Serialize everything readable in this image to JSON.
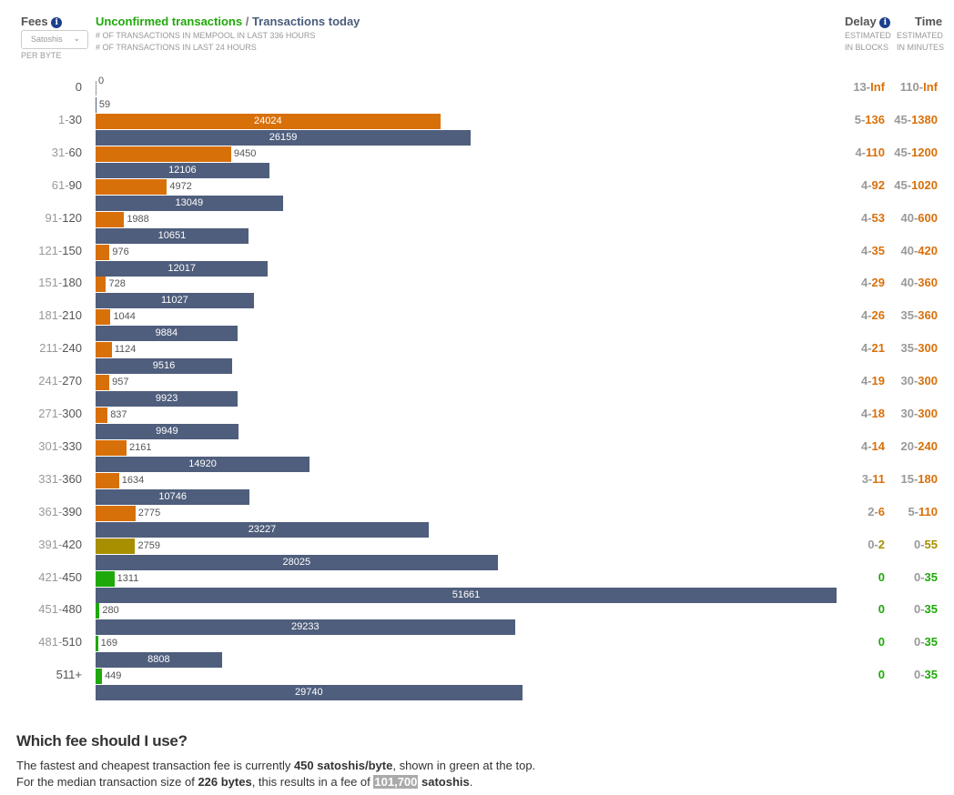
{
  "header": {
    "fees_label": "Fees",
    "unit_select_value": "Satoshis",
    "per_byte": "PER BYTE",
    "title_unconfirmed": "Unconfirmed transactions",
    "title_separator": " / ",
    "title_today": "Transactions today",
    "note_mempool": "# OF TRANSACTIONS IN MEMPOOL IN LAST 336 HOURS",
    "note_24h": "# OF TRANSACTIONS IN LAST 24 HOURS",
    "delay_label": "Delay",
    "delay_sub1": "ESTIMATED",
    "delay_sub2": "IN BLOCKS",
    "time_label": "Time",
    "time_sub1": "ESTIMATED",
    "time_sub2": "IN MINUTES",
    "info_glyph": "i"
  },
  "colors": {
    "orange": "#d8700a",
    "olive": "#a88f00",
    "green": "#1fa80a",
    "navy": "#4f5e7c"
  },
  "chart_data": {
    "type": "bar",
    "orientation": "horizontal",
    "categories": [
      "0",
      "1-30",
      "31-60",
      "61-90",
      "91-120",
      "121-150",
      "151-180",
      "181-210",
      "211-240",
      "241-270",
      "271-300",
      "301-330",
      "331-360",
      "361-390",
      "391-420",
      "421-450",
      "451-480",
      "481-510",
      "511+"
    ],
    "series": [
      {
        "name": "Unconfirmed transactions",
        "values": [
          0,
          24024,
          9450,
          4972,
          1988,
          976,
          728,
          1044,
          1124,
          957,
          837,
          2161,
          1634,
          2775,
          2759,
          1311,
          280,
          169,
          449
        ]
      },
      {
        "name": "Transactions today",
        "values": [
          59,
          26159,
          12106,
          13049,
          10651,
          12017,
          11027,
          9884,
          9516,
          9923,
          9949,
          14920,
          10746,
          23227,
          28025,
          51661,
          29233,
          8808,
          29740
        ]
      }
    ],
    "bar_colors": [
      "orange",
      "orange",
      "orange",
      "orange",
      "orange",
      "orange",
      "orange",
      "orange",
      "orange",
      "orange",
      "orange",
      "orange",
      "orange",
      "orange",
      "olive",
      "green",
      "green",
      "green",
      "green"
    ],
    "delay": [
      [
        "13",
        "Inf"
      ],
      [
        "5",
        "136"
      ],
      [
        "4",
        "110"
      ],
      [
        "4",
        "92"
      ],
      [
        "4",
        "53"
      ],
      [
        "4",
        "35"
      ],
      [
        "4",
        "29"
      ],
      [
        "4",
        "26"
      ],
      [
        "4",
        "21"
      ],
      [
        "4",
        "19"
      ],
      [
        "4",
        "18"
      ],
      [
        "4",
        "14"
      ],
      [
        "3",
        "11"
      ],
      [
        "2",
        "6"
      ],
      [
        "0",
        "2"
      ],
      [
        "",
        "0"
      ],
      [
        "",
        "0"
      ],
      [
        "",
        "0"
      ],
      [
        "",
        "0"
      ]
    ],
    "time": [
      [
        "110",
        "Inf"
      ],
      [
        "45",
        "1380"
      ],
      [
        "45",
        "1200"
      ],
      [
        "45",
        "1020"
      ],
      [
        "40",
        "600"
      ],
      [
        "40",
        "420"
      ],
      [
        "40",
        "360"
      ],
      [
        "35",
        "360"
      ],
      [
        "35",
        "300"
      ],
      [
        "30",
        "300"
      ],
      [
        "30",
        "300"
      ],
      [
        "20",
        "240"
      ],
      [
        "15",
        "180"
      ],
      [
        "5",
        "110"
      ],
      [
        "0",
        "55"
      ],
      [
        "0",
        "35"
      ],
      [
        "0",
        "35"
      ],
      [
        "0",
        "35"
      ],
      [
        "0",
        "35"
      ]
    ],
    "xlim": [
      0,
      51661
    ]
  },
  "recommendation": {
    "title": "Which fee should I use?",
    "l1_a": "The fastest and cheapest transaction fee is currently ",
    "l1_b": "450 satoshis/byte",
    "l1_c": ", shown in green at the top.",
    "l2_a": "For the median transaction size of ",
    "l2_b": "226 bytes",
    "l2_c": ", this results in a fee of ",
    "l2_d": "101,700",
    "l2_e": " satoshis",
    "l2_f": "."
  }
}
